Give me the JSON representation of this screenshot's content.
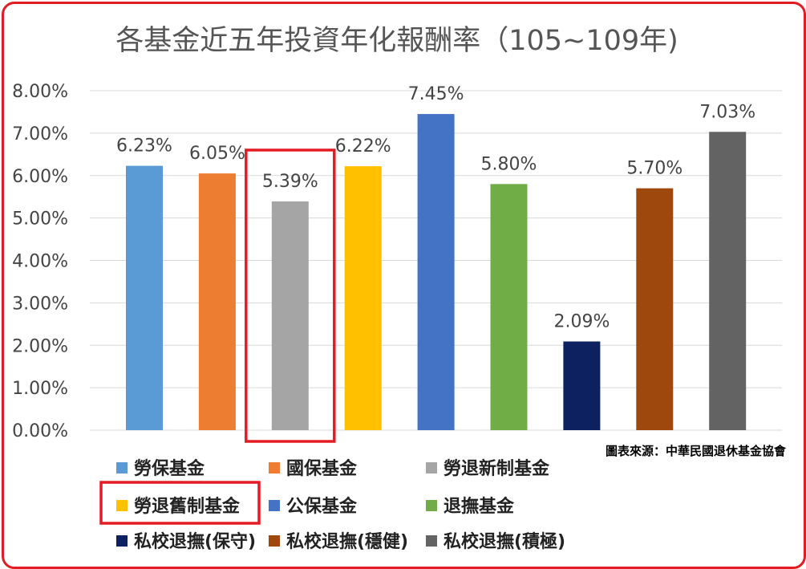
{
  "chart_data": {
    "type": "bar",
    "title": "各基金近五年投資年化報酬率（105~109年)",
    "categories": [
      "勞保基金",
      "國保基金",
      "勞退新制基金",
      "勞退舊制基金",
      "公保基金",
      "退撫基金",
      "私校退撫(保守)",
      "私校退撫(穩健)",
      "私校退撫(積極)"
    ],
    "values": [
      6.23,
      6.05,
      5.39,
      6.22,
      7.45,
      5.8,
      2.09,
      5.7,
      7.03
    ],
    "data_labels": [
      "6.23%",
      "6.05%",
      "5.39%",
      "6.22%",
      "7.45%",
      "5.80%",
      "2.09%",
      "5.70%",
      "7.03%"
    ],
    "colors": [
      "#5b9bd5",
      "#ed7d31",
      "#a5a5a5",
      "#ffc000",
      "#4472c4",
      "#70ad47",
      "#0d2161",
      "#9e480e",
      "#636363"
    ],
    "ylim": [
      0,
      8
    ],
    "y_ticks": [
      "0.00%",
      "1.00%",
      "2.00%",
      "3.00%",
      "4.00%",
      "5.00%",
      "6.00%",
      "7.00%",
      "8.00%"
    ],
    "grid": true,
    "legend_placement": "bottom",
    "highlighted": [
      "勞退新制基金",
      "勞退舊制基金"
    ],
    "highlight_color": "#e31b23",
    "source_note": "圖表來源：中華民國退休基金協會"
  }
}
